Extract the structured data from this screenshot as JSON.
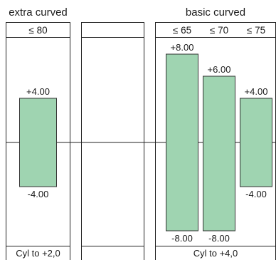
{
  "chart_data": {
    "type": "bar",
    "ylim": [
      -12,
      12
    ],
    "reference_line": 0,
    "bar_color": "#9fd4b1",
    "bar_border": "#333333",
    "panels": [
      {
        "title": "extra curved",
        "headers": [
          "≤ 80"
        ],
        "bars": [
          {
            "header": "≤ 80",
            "top": 4.0,
            "bottom": -4.0,
            "top_label": "+4.00",
            "bottom_label": "-4.00"
          }
        ],
        "footer": "Cyl to +2,0"
      },
      {
        "title": "",
        "headers": [],
        "bars": [],
        "footer": ""
      },
      {
        "title": "basic curved",
        "headers": [
          "≤ 65",
          "≤ 70",
          "≤ 75"
        ],
        "bars": [
          {
            "header": "≤ 65",
            "top": 8.0,
            "bottom": -8.0,
            "top_label": "+8.00",
            "bottom_label": "-8.00"
          },
          {
            "header": "≤ 70",
            "top": 6.0,
            "bottom": -8.0,
            "top_label": "+6.00",
            "bottom_label": "-8.00"
          },
          {
            "header": "≤ 75",
            "top": 4.0,
            "bottom": -4.0,
            "top_label": "+4.00",
            "bottom_label": "-4.00"
          }
        ],
        "footer": "Cyl to +4,0"
      }
    ]
  }
}
